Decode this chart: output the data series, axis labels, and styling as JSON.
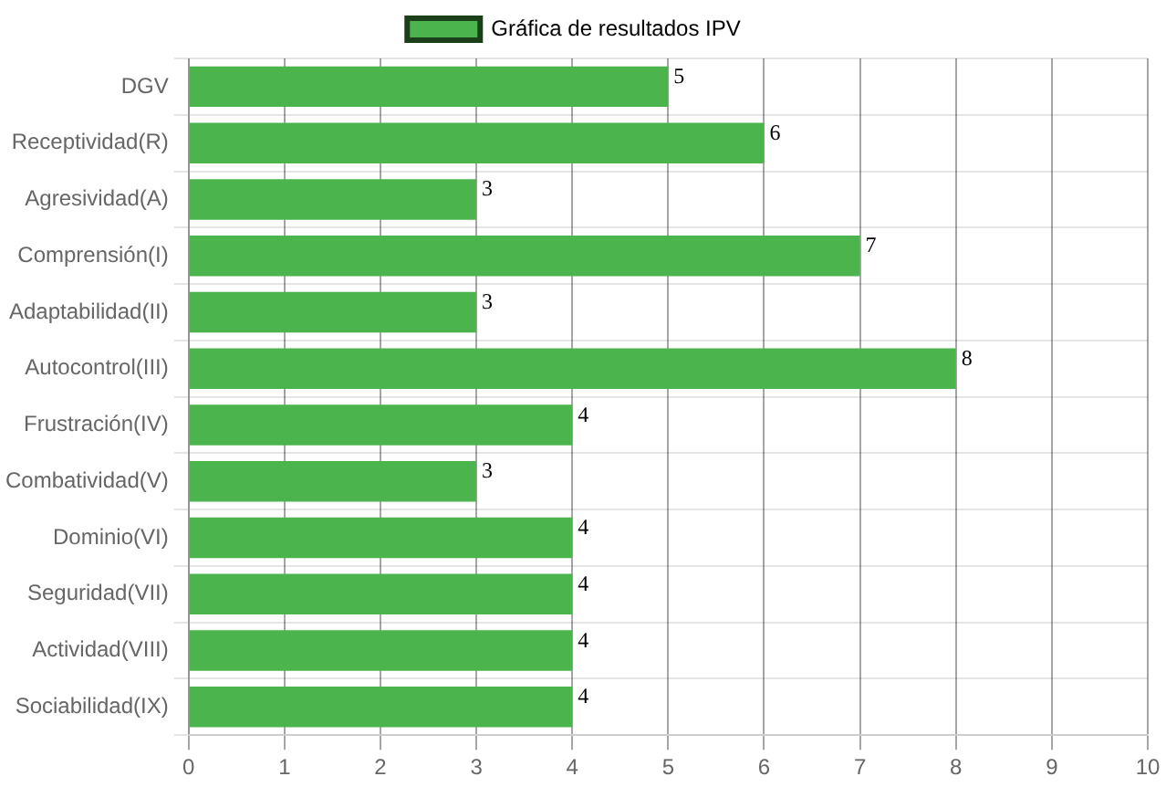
{
  "chart_data": {
    "type": "bar",
    "orientation": "horizontal",
    "categories": [
      "DGV",
      "Receptividad(R)",
      "Agresividad(A)",
      "Comprensión(I)",
      "Adaptabilidad(II)",
      "Autocontrol(III)",
      "Frustración(IV)",
      "Combatividad(V)",
      "Dominio(VI)",
      "Seguridad(VII)",
      "Actividad(VIII)",
      "Sociabilidad(IX)"
    ],
    "series": [
      {
        "name": "Gráfica de resultados IPV",
        "color": "#4cb44c",
        "values": [
          5,
          6,
          3,
          7,
          3,
          8,
          4,
          3,
          4,
          4,
          4,
          4
        ]
      }
    ],
    "xlim": [
      0,
      10
    ],
    "xticks": [
      0,
      1,
      2,
      3,
      4,
      5,
      6,
      7,
      8,
      9,
      10
    ],
    "grid": true,
    "legend": "top",
    "data_labels": true
  }
}
